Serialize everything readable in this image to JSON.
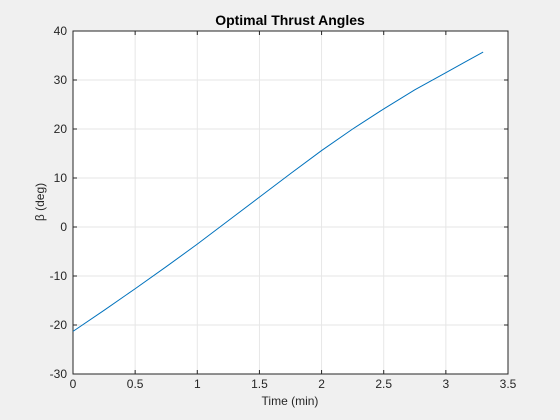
{
  "chart_data": {
    "type": "line",
    "title": "Optimal Thrust Angles",
    "xlabel": "Time (min)",
    "ylabel": "β (deg)",
    "x": [
      0,
      0.25,
      0.5,
      0.75,
      1,
      1.25,
      1.5,
      1.75,
      2,
      2.25,
      2.5,
      2.75,
      3,
      3.15,
      3.3
    ],
    "series": [
      {
        "color": "#0072bd",
        "values": [
          -21.3,
          -17,
          -12.6,
          -8.1,
          -3.5,
          1.3,
          6.1,
          10.9,
          15.6,
          20,
          24.1,
          28,
          31.5,
          33.6,
          35.7
        ]
      }
    ],
    "xlim": [
      0,
      3.5
    ],
    "ylim": [
      -30,
      40
    ],
    "xticks": [
      0,
      0.5,
      1,
      1.5,
      2,
      2.5,
      3,
      3.5
    ],
    "yticks": [
      -30,
      -20,
      -10,
      0,
      10,
      20,
      30,
      40
    ],
    "grid": true
  }
}
